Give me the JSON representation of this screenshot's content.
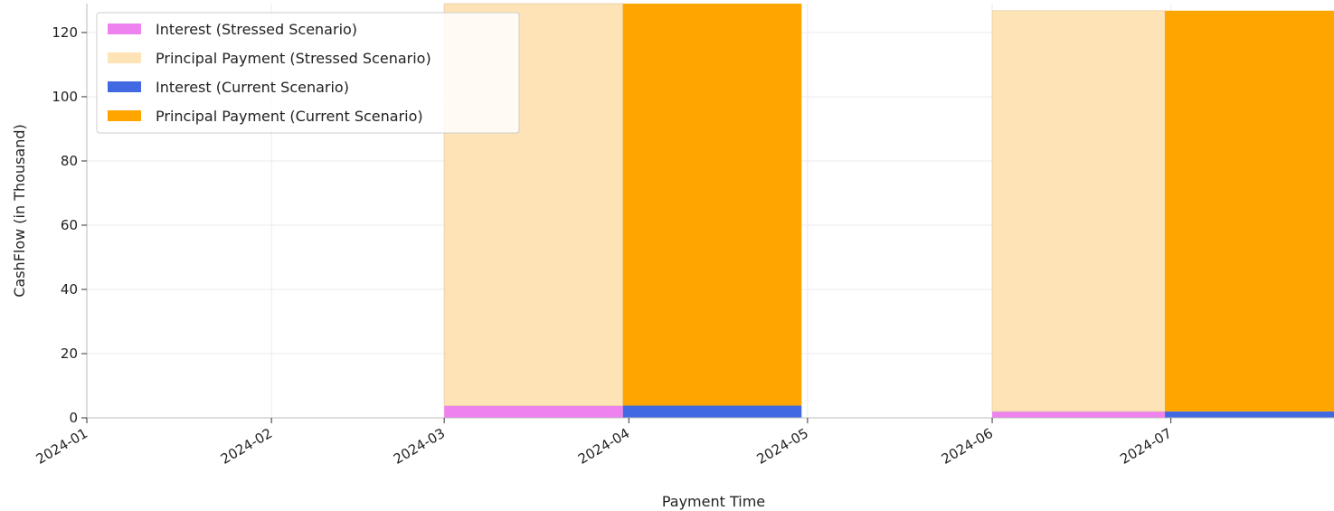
{
  "chart_data": {
    "type": "bar",
    "stacked": true,
    "xlabel": "Payment Time",
    "ylabel": "CashFlow (in Thousand)",
    "x_ticks": [
      "2024-01",
      "2024-02",
      "2024-03",
      "2024-04",
      "2024-05",
      "2024-06",
      "2024-07"
    ],
    "y_ticks": [
      "0",
      "20",
      "40",
      "60",
      "80",
      "100",
      "120"
    ],
    "ylim": [
      0,
      129
    ],
    "grid": true,
    "legend_position": "top-left",
    "series": [
      {
        "name": "Interest (Stressed Scenario)",
        "color": "#ee82ee",
        "layer": "bottom",
        "bars": [
          {
            "start": "2024-03-01",
            "end": "2024-03-31",
            "value": 3.8
          },
          {
            "start": "2024-06-01",
            "end": "2024-06-30",
            "value": 2.0
          }
        ]
      },
      {
        "name": "Principal Payment (Stressed Scenario)",
        "color": "#fde3b5",
        "layer": "top",
        "bars": [
          {
            "start": "2024-03-01",
            "end": "2024-03-31",
            "value": 125.2
          },
          {
            "start": "2024-06-01",
            "end": "2024-06-30",
            "value": 124.8
          }
        ]
      },
      {
        "name": "Interest (Current Scenario)",
        "color": "#4169e1",
        "layer": "bottom",
        "bars": [
          {
            "start": "2024-03-31",
            "end": "2024-04-30",
            "value": 3.8
          },
          {
            "start": "2024-06-30",
            "end": "2024-07-31",
            "value": 2.0
          }
        ]
      },
      {
        "name": "Principal Payment (Current Scenario)",
        "color": "#ffa500",
        "layer": "top",
        "bars": [
          {
            "start": "2024-03-31",
            "end": "2024-04-30",
            "value": 125.2
          },
          {
            "start": "2024-06-30",
            "end": "2024-07-31",
            "value": 124.8
          }
        ]
      }
    ]
  }
}
